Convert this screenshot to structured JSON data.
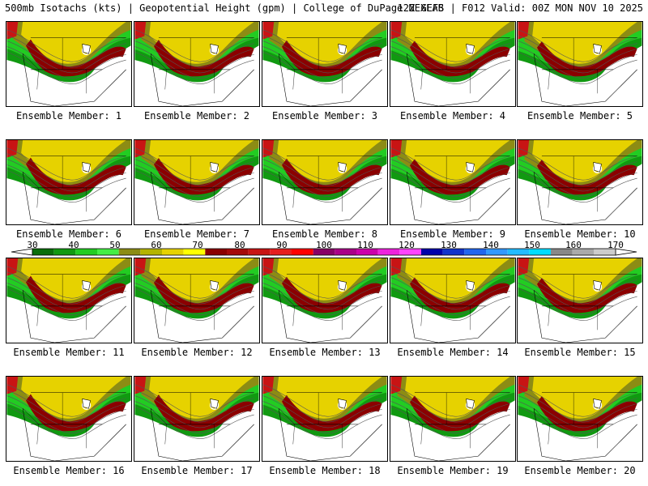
{
  "header": {
    "left": "500mb Isotachs (kts) | Geopotential Height (gpm) | College of DuPage NEXLAB",
    "right": "12Z GEFS | F012 Valid: 00Z MON NOV 10 2025"
  },
  "panels": [
    {
      "caption": "Ensemble Member: 1"
    },
    {
      "caption": "Ensemble Member: 2"
    },
    {
      "caption": "Ensemble Member: 3"
    },
    {
      "caption": "Ensemble Member: 4"
    },
    {
      "caption": "Ensemble Member: 5"
    },
    {
      "caption": "Ensemble Member: 6"
    },
    {
      "caption": "Ensemble Member: 7"
    },
    {
      "caption": "Ensemble Member: 8"
    },
    {
      "caption": "Ensemble Member: 9"
    },
    {
      "caption": "Ensemble Member: 10"
    },
    {
      "caption": "Ensemble Member: 11"
    },
    {
      "caption": "Ensemble Member: 12"
    },
    {
      "caption": "Ensemble Member: 13"
    },
    {
      "caption": "Ensemble Member: 14"
    },
    {
      "caption": "Ensemble Member: 15"
    },
    {
      "caption": "Ensemble Member: 16"
    },
    {
      "caption": "Ensemble Member: 17"
    },
    {
      "caption": "Ensemble Member: 18"
    },
    {
      "caption": "Ensemble Member: 19"
    },
    {
      "caption": "Ensemble Member: 20"
    }
  ],
  "colorbar": {
    "labels": [
      "30",
      "40",
      "50",
      "60",
      "70",
      "80",
      "90",
      "100",
      "110",
      "120",
      "130",
      "140",
      "150",
      "160",
      "170"
    ],
    "colors": [
      "#0a6e0a",
      "#119911",
      "#22cc22",
      "#44ee44",
      "#8c8c14",
      "#b4b400",
      "#e6d200",
      "#ffff00",
      "#8b0000",
      "#a50a0a",
      "#c81414",
      "#e61e1e",
      "#ff0000",
      "#880066",
      "#aa0088",
      "#cc00aa",
      "#ee22dd",
      "#ff44ff",
      "#0000aa",
      "#1133cc",
      "#2266ee",
      "#3399ff",
      "#22bbff",
      "#00ddff",
      "#888888",
      "#aaaaaa",
      "#cccccc"
    ]
  },
  "map_colors": {
    "weak": "#119911",
    "moderate": "#22cc22",
    "olive": "#8c8c14",
    "yellow": "#e6d200",
    "jet": "#8b0000",
    "jet_core": "#c81414",
    "outline": "#000000"
  }
}
